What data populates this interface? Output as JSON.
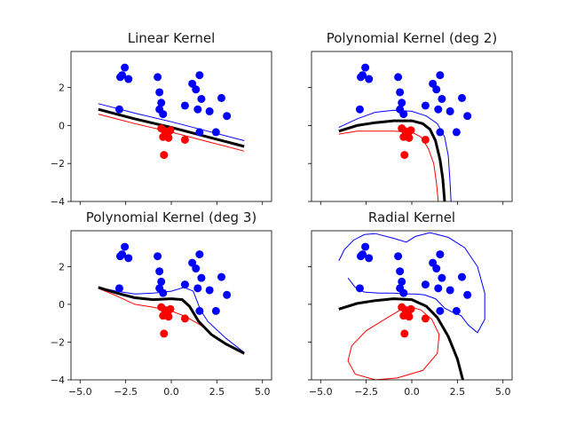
{
  "colors": {
    "blue_class": "#0000ff",
    "red_class": "#ff0000",
    "boundary": "#000000"
  },
  "chart_data": [
    {
      "type": "scatter",
      "title": "Linear Kernel",
      "xlim": [
        -5.5,
        5.5
      ],
      "ylim": [
        -4,
        3.9
      ],
      "xticks": [
        "−5.0",
        "−2.5",
        "0.0",
        "2.5",
        "5.0"
      ],
      "yticks": [
        "2",
        "0",
        "−2",
        "−4"
      ],
      "show_xtick_labels": false,
      "show_ytick_labels": true,
      "blue_points": [
        [
          -2.8,
          2.55
        ],
        [
          -2.7,
          2.65
        ],
        [
          -2.55,
          3.05
        ],
        [
          -2.35,
          2.45
        ],
        [
          -0.75,
          2.55
        ],
        [
          -0.65,
          1.75
        ],
        [
          -0.55,
          1.2
        ],
        [
          -0.45,
          0.6
        ],
        [
          -0.65,
          0.85
        ],
        [
          -2.85,
          0.85
        ],
        [
          1.15,
          2.2
        ],
        [
          1.55,
          2.65
        ],
        [
          1.35,
          1.9
        ],
        [
          1.65,
          1.4
        ],
        [
          2.75,
          1.45
        ],
        [
          0.75,
          1.05
        ],
        [
          1.45,
          0.85
        ],
        [
          2.1,
          0.75
        ],
        [
          3.05,
          0.5
        ],
        [
          1.55,
          -0.35
        ],
        [
          2.45,
          -0.35
        ]
      ],
      "red_points": [
        [
          -0.55,
          -0.15
        ],
        [
          -0.35,
          -0.3
        ],
        [
          -0.45,
          -0.6
        ],
        [
          -0.2,
          -0.4
        ],
        [
          -0.05,
          -0.25
        ],
        [
          -0.3,
          -0.5
        ],
        [
          -0.15,
          -0.65
        ],
        [
          0.75,
          -0.75
        ],
        [
          -0.4,
          -1.55
        ]
      ],
      "decision_boundary": [
        [
          -4,
          0.85
        ],
        [
          -2,
          0.35
        ],
        [
          0,
          -0.1
        ],
        [
          2,
          -0.6
        ],
        [
          4,
          -1.1
        ]
      ],
      "margin_blue": [
        [
          -4,
          1.15
        ],
        [
          -2,
          0.65
        ],
        [
          0,
          0.2
        ],
        [
          2,
          -0.3
        ],
        [
          4,
          -0.8
        ]
      ],
      "margin_red": [
        [
          -4,
          0.6
        ],
        [
          -2,
          0.1
        ],
        [
          0,
          -0.35
        ],
        [
          2,
          -0.85
        ],
        [
          4,
          -1.35
        ]
      ]
    },
    {
      "type": "scatter",
      "title": "Polynomial Kernel (deg 2)",
      "xlim": [
        -5.5,
        5.5
      ],
      "ylim": [
        -4,
        3.9
      ],
      "xticks": [
        "−5.0",
        "−2.5",
        "0.0",
        "2.5",
        "5.0"
      ],
      "yticks": [
        "2",
        "0",
        "−2",
        "−4"
      ],
      "show_xtick_labels": false,
      "show_ytick_labels": false,
      "blue_points": [
        [
          -2.8,
          2.55
        ],
        [
          -2.7,
          2.65
        ],
        [
          -2.55,
          3.05
        ],
        [
          -2.35,
          2.45
        ],
        [
          -0.75,
          2.55
        ],
        [
          -0.65,
          1.75
        ],
        [
          -0.55,
          1.2
        ],
        [
          -0.45,
          0.6
        ],
        [
          -0.65,
          0.85
        ],
        [
          -2.85,
          0.85
        ],
        [
          1.15,
          2.2
        ],
        [
          1.55,
          2.65
        ],
        [
          1.35,
          1.9
        ],
        [
          1.65,
          1.4
        ],
        [
          2.75,
          1.45
        ],
        [
          0.75,
          1.05
        ],
        [
          1.45,
          0.85
        ],
        [
          2.1,
          0.75
        ],
        [
          3.05,
          0.5
        ],
        [
          1.55,
          -0.35
        ],
        [
          2.45,
          -0.35
        ]
      ],
      "red_points": [
        [
          -0.55,
          -0.15
        ],
        [
          -0.35,
          -0.3
        ],
        [
          -0.45,
          -0.6
        ],
        [
          -0.2,
          -0.4
        ],
        [
          -0.05,
          -0.25
        ],
        [
          -0.3,
          -0.5
        ],
        [
          -0.15,
          -0.65
        ],
        [
          0.75,
          -0.75
        ],
        [
          -0.4,
          -1.55
        ]
      ],
      "decision_boundary": [
        [
          -4,
          -0.3
        ],
        [
          -3,
          0.0
        ],
        [
          -2,
          0.15
        ],
        [
          -1,
          0.25
        ],
        [
          0,
          0.25
        ],
        [
          0.6,
          0.1
        ],
        [
          1,
          -0.2
        ],
        [
          1.3,
          -0.8
        ],
        [
          1.55,
          -1.8
        ],
        [
          1.7,
          -2.8
        ],
        [
          1.8,
          -4
        ]
      ],
      "margin_blue": [
        [
          -4,
          -0.1
        ],
        [
          -3,
          0.35
        ],
        [
          -2,
          0.7
        ],
        [
          -1,
          0.8
        ],
        [
          0,
          0.75
        ],
        [
          0.8,
          0.5
        ],
        [
          1.4,
          0.1
        ],
        [
          1.8,
          -0.6
        ],
        [
          2.0,
          -1.6
        ],
        [
          2.1,
          -3.0
        ],
        [
          2.15,
          -4
        ]
      ],
      "margin_red": [
        [
          -4,
          -0.45
        ],
        [
          -3,
          -0.3
        ],
        [
          -2,
          -0.3
        ],
        [
          -1,
          -0.3
        ],
        [
          0,
          -0.35
        ],
        [
          0.5,
          -0.6
        ],
        [
          0.9,
          -1.2
        ],
        [
          1.2,
          -2.0
        ],
        [
          1.35,
          -3.0
        ],
        [
          1.45,
          -4
        ]
      ]
    },
    {
      "type": "scatter",
      "title": "Polynomial Kernel (deg 3)",
      "xlim": [
        -5.5,
        5.5
      ],
      "ylim": [
        -4,
        3.9
      ],
      "xticks": [
        "−5.0",
        "−2.5",
        "0.0",
        "2.5",
        "5.0"
      ],
      "yticks": [
        "2",
        "0",
        "−2",
        "−4"
      ],
      "show_xtick_labels": true,
      "show_ytick_labels": true,
      "blue_points": [
        [
          -2.8,
          2.55
        ],
        [
          -2.7,
          2.65
        ],
        [
          -2.55,
          3.05
        ],
        [
          -2.35,
          2.45
        ],
        [
          -0.75,
          2.55
        ],
        [
          -0.65,
          1.75
        ],
        [
          -0.55,
          1.2
        ],
        [
          -0.45,
          0.6
        ],
        [
          -0.65,
          0.85
        ],
        [
          -2.85,
          0.85
        ],
        [
          1.15,
          2.2
        ],
        [
          1.55,
          2.65
        ],
        [
          1.35,
          1.9
        ],
        [
          1.65,
          1.4
        ],
        [
          2.75,
          1.45
        ],
        [
          0.75,
          1.05
        ],
        [
          1.45,
          0.85
        ],
        [
          2.1,
          0.75
        ],
        [
          3.05,
          0.5
        ],
        [
          1.55,
          -0.35
        ],
        [
          2.45,
          -0.35
        ]
      ],
      "red_points": [
        [
          -0.55,
          -0.15
        ],
        [
          -0.35,
          -0.3
        ],
        [
          -0.45,
          -0.6
        ],
        [
          -0.2,
          -0.4
        ],
        [
          -0.05,
          -0.25
        ],
        [
          -0.3,
          -0.5
        ],
        [
          -0.15,
          -0.65
        ],
        [
          0.75,
          -0.75
        ],
        [
          -0.4,
          -1.55
        ]
      ],
      "decision_boundary": [
        [
          -4,
          0.9
        ],
        [
          -3,
          0.6
        ],
        [
          -2,
          0.35
        ],
        [
          -1,
          0.25
        ],
        [
          0,
          0.3
        ],
        [
          0.6,
          0.25
        ],
        [
          1,
          -0.1
        ],
        [
          1.5,
          -0.9
        ],
        [
          2.2,
          -1.6
        ],
        [
          3,
          -2.1
        ],
        [
          4,
          -2.6
        ]
      ],
      "margin_blue": [
        [
          -4,
          0.9
        ],
        [
          -3,
          0.7
        ],
        [
          -2,
          0.55
        ],
        [
          -1,
          0.6
        ],
        [
          0,
          0.7
        ],
        [
          0.7,
          0.9
        ],
        [
          1.2,
          0.7
        ],
        [
          1.4,
          0.2
        ],
        [
          1.6,
          -0.3
        ],
        [
          2,
          -0.9
        ],
        [
          3,
          -1.8
        ],
        [
          4,
          -2.55
        ]
      ],
      "margin_red": [
        [
          -4,
          0.85
        ],
        [
          -3,
          0.45
        ],
        [
          -2,
          0.0
        ],
        [
          -1,
          -0.15
        ],
        [
          0,
          -0.35
        ],
        [
          0.8,
          -0.65
        ],
        [
          1.6,
          -1.1
        ],
        [
          2.5,
          -1.8
        ],
        [
          3.2,
          -2.2
        ],
        [
          4,
          -2.65
        ]
      ]
    },
    {
      "type": "scatter",
      "title": "Radial Kernel",
      "xlim": [
        -5.5,
        5.5
      ],
      "ylim": [
        -4,
        3.9
      ],
      "xticks": [
        "−5.0",
        "−2.5",
        "0.0",
        "2.5",
        "5.0"
      ],
      "yticks": [
        "2",
        "0",
        "−2",
        "−4"
      ],
      "show_xtick_labels": true,
      "show_ytick_labels": false,
      "blue_points": [
        [
          -2.8,
          2.55
        ],
        [
          -2.7,
          2.65
        ],
        [
          -2.55,
          3.05
        ],
        [
          -2.35,
          2.45
        ],
        [
          -0.75,
          2.55
        ],
        [
          -0.65,
          1.75
        ],
        [
          -0.55,
          1.2
        ],
        [
          -0.45,
          0.6
        ],
        [
          -0.65,
          0.85
        ],
        [
          -2.85,
          0.85
        ],
        [
          1.15,
          2.2
        ],
        [
          1.55,
          2.65
        ],
        [
          1.35,
          1.9
        ],
        [
          1.65,
          1.4
        ],
        [
          2.75,
          1.45
        ],
        [
          0.75,
          1.05
        ],
        [
          1.45,
          0.85
        ],
        [
          2.1,
          0.75
        ],
        [
          3.05,
          0.5
        ],
        [
          1.55,
          -0.35
        ],
        [
          2.45,
          -0.35
        ]
      ],
      "red_points": [
        [
          -0.55,
          -0.15
        ],
        [
          -0.35,
          -0.3
        ],
        [
          -0.45,
          -0.6
        ],
        [
          -0.2,
          -0.4
        ],
        [
          -0.05,
          -0.25
        ],
        [
          -0.3,
          -0.5
        ],
        [
          -0.15,
          -0.65
        ],
        [
          0.75,
          -0.75
        ],
        [
          -0.4,
          -1.55
        ]
      ],
      "decision_boundary": [
        [
          -4,
          -0.25
        ],
        [
          -3,
          0.05
        ],
        [
          -2,
          0.2
        ],
        [
          -1,
          0.3
        ],
        [
          0,
          0.25
        ],
        [
          0.8,
          -0.1
        ],
        [
          1.4,
          -0.7
        ],
        [
          2,
          -1.7
        ],
        [
          2.5,
          -2.9
        ],
        [
          2.8,
          -4
        ]
      ],
      "margin_blue": [
        [
          -4,
          2.3
        ],
        [
          -3.7,
          2.9
        ],
        [
          -3.2,
          3.4
        ],
        [
          -2.6,
          3.7
        ],
        [
          -2.0,
          3.75
        ],
        [
          -1.0,
          3.5
        ],
        [
          -0.3,
          3.3
        ],
        [
          0.2,
          3.6
        ],
        [
          1.0,
          3.8
        ],
        [
          2.0,
          3.55
        ],
        [
          2.9,
          3.0
        ],
        [
          3.6,
          2.0
        ],
        [
          4.0,
          0.6
        ],
        [
          4.0,
          -0.8
        ],
        [
          3.6,
          -1.5
        ],
        [
          3.1,
          -1.1
        ],
        [
          2.7,
          -0.6
        ],
        [
          2.2,
          -0.4
        ],
        [
          1.8,
          -0.2
        ],
        [
          1.3,
          0.3
        ],
        [
          0.7,
          0.5
        ],
        [
          0.2,
          0.55
        ],
        [
          -0.3,
          0.55
        ],
        [
          -1.0,
          0.6
        ],
        [
          -1.8,
          0.6
        ],
        [
          -2.6,
          0.65
        ],
        [
          -3.1,
          0.9
        ],
        [
          -3.5,
          1.4
        ]
      ],
      "margin_red": [
        [
          -0.55,
          -0.25
        ],
        [
          -1.5,
          -0.8
        ],
        [
          -2.5,
          -1.4
        ],
        [
          -3.3,
          -2.2
        ],
        [
          -3.5,
          -3.0
        ],
        [
          -3.1,
          -3.7
        ],
        [
          -2.0,
          -4.0
        ],
        [
          -0.8,
          -3.9
        ],
        [
          0.6,
          -3.5
        ],
        [
          1.4,
          -2.6
        ],
        [
          1.5,
          -1.6
        ],
        [
          1.1,
          -0.8
        ],
        [
          0.5,
          -0.3
        ],
        [
          0.0,
          -0.15
        ]
      ],
      "margin_red_closed": true
    }
  ]
}
